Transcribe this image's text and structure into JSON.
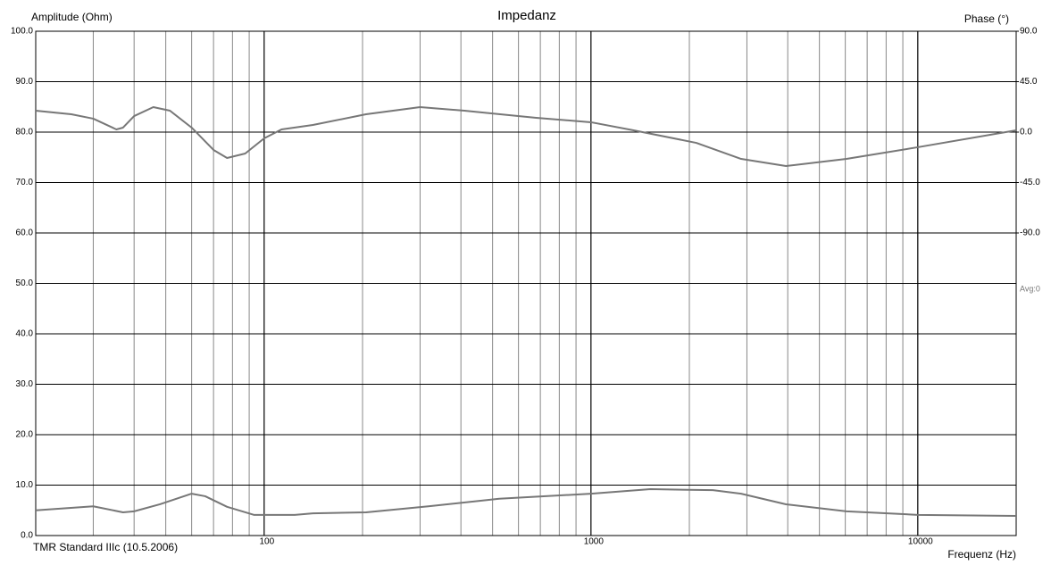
{
  "chart_data": {
    "type": "line",
    "title": "Impedanz",
    "ylabel": "Amplitude (Ohm)",
    "y2label": "Phase (°)",
    "xlabel": "Frequenz (Hz)",
    "annotations": [
      "TMR Standard IIIc (10.5.2006)",
      "Avg:0"
    ],
    "xscale": "log",
    "xlim": [
      20,
      20000
    ],
    "xticks": [
      100,
      1000,
      10000
    ],
    "ylim": [
      0,
      100
    ],
    "yticks": [
      {
        "value": 0,
        "label": "0.0"
      },
      {
        "value": 10,
        "label": "10.0"
      },
      {
        "value": 20,
        "label": "20.0"
      },
      {
        "value": 30,
        "label": "30.0"
      },
      {
        "value": 40,
        "label": "40.0"
      },
      {
        "value": 50,
        "label": "50.0"
      },
      {
        "value": 60,
        "label": "60.0"
      },
      {
        "value": 70,
        "label": "70.0"
      },
      {
        "value": 80,
        "label": "80.0"
      },
      {
        "value": 90,
        "label": "90.0"
      },
      {
        "value": 100,
        "label": "100.0"
      }
    ],
    "y2lim": [
      -360,
      90
    ],
    "y2ticks": [
      {
        "value": 90,
        "label": "90.0"
      },
      {
        "value": 45,
        "label": "45.0"
      },
      {
        "value": 0,
        "label": "0.0"
      },
      {
        "value": -45,
        "label": "-45.0"
      },
      {
        "value": -90,
        "label": "-90.0"
      }
    ],
    "grid": true,
    "series": [
      {
        "color": "#777777",
        "x": [
          20,
          30,
          37,
          40,
          48,
          60,
          66,
          77,
          93,
          124,
          141,
          205,
          318,
          524,
          1000,
          1520,
          2360,
          2880,
          3950,
          6050,
          10000,
          20000
        ],
        "values": [
          5.0,
          5.8,
          4.6,
          4.8,
          6.2,
          8.3,
          7.8,
          5.7,
          4.1,
          4.1,
          4.4,
          4.6,
          5.8,
          7.3,
          8.3,
          9.2,
          9.0,
          8.3,
          6.2,
          4.8,
          4.1,
          3.9
        ]
      },
      {
        "color": "#777777",
        "axis": "y2",
        "x": [
          20,
          25.7,
          30,
          35.3,
          37,
          40,
          45.8,
          51.5,
          60,
          70,
          77,
          87.5,
          100,
          113,
          141,
          205,
          300,
          410,
          680,
          1000,
          1350,
          2100,
          2880,
          3950,
          6050,
          10000,
          20000
        ],
        "values": [
          19.1,
          15.9,
          12,
          2.4,
          4.0,
          14.3,
          22.3,
          19.1,
          4.0,
          -15.9,
          -23.1,
          -19.1,
          -5.6,
          2.4,
          6.4,
          15.9,
          22.3,
          19.1,
          12.7,
          8.8,
          1.6,
          -9.6,
          -23.9,
          -30.3,
          -23.9,
          -13.5,
          1.6
        ]
      }
    ]
  }
}
